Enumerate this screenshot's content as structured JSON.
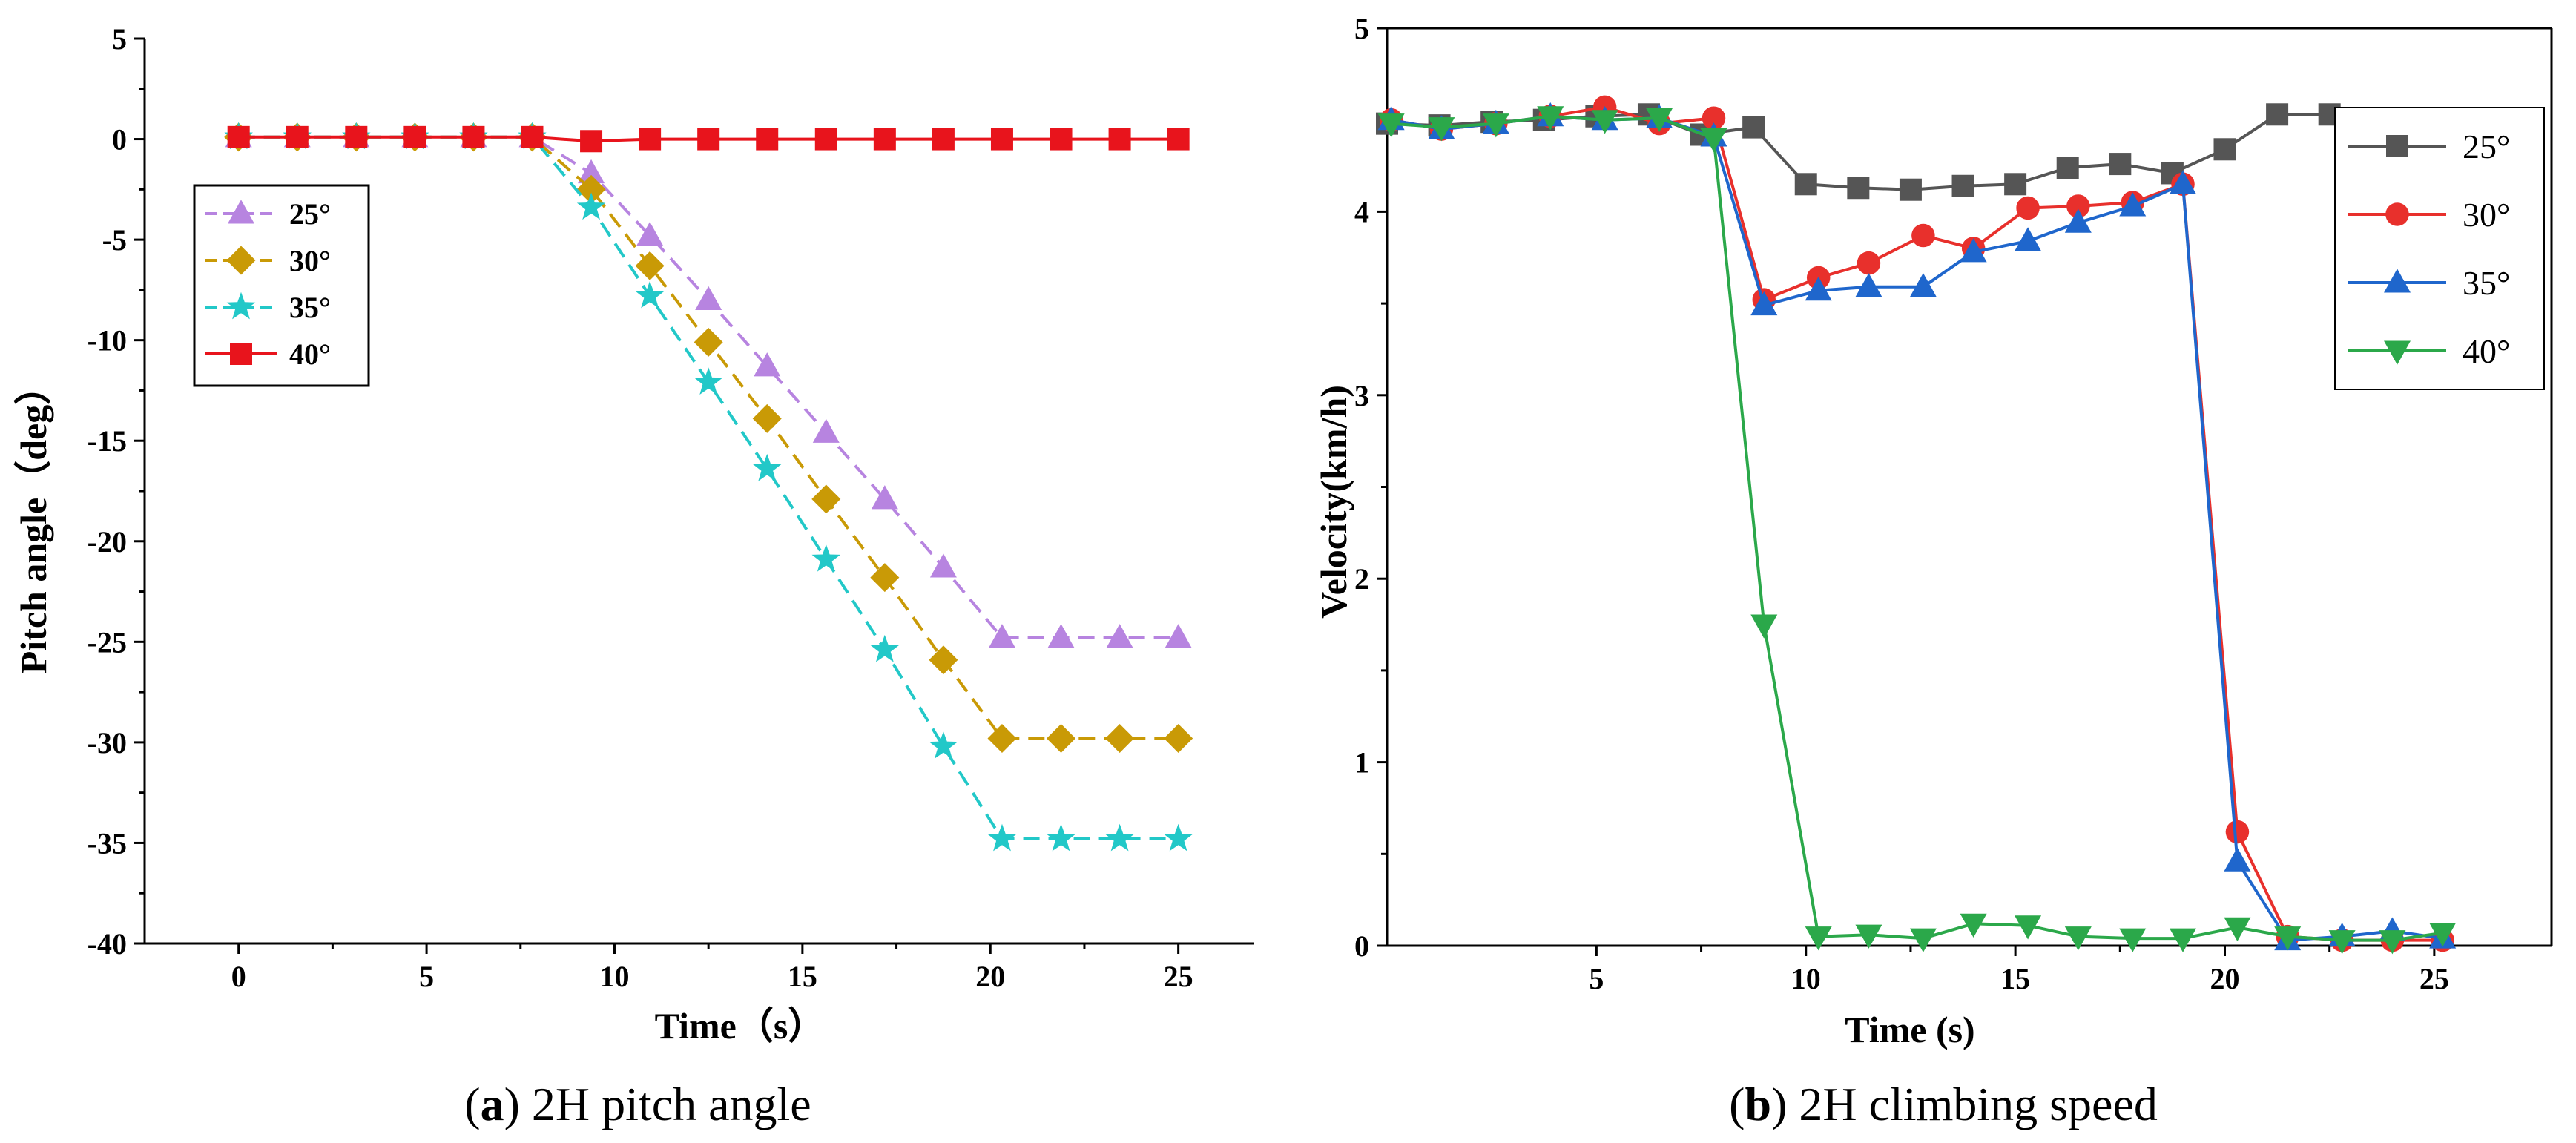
{
  "chart_data": [
    {
      "type": "line",
      "caption_letter": "a",
      "caption_text": ") 2H pitch angle",
      "caption_open": "(",
      "xlabel": "Time（s）",
      "ylabel": "Pitch angle（deg）",
      "xlim": [
        -2.5,
        27
      ],
      "ylim": [
        -40,
        5
      ],
      "xticks": [
        0,
        5,
        10,
        15,
        20,
        25
      ],
      "yticks": [
        5,
        0,
        -5,
        -10,
        -15,
        -20,
        -25,
        -30,
        -35,
        -40
      ],
      "legend_position": "middle-left",
      "series": [
        {
          "name": "25°",
          "color": "#b784e0",
          "marker": "triangle-up",
          "dash": "dashed",
          "x": [
            0,
            1.56,
            3.13,
            4.69,
            6.25,
            7.81,
            9.38,
            10.94,
            12.5,
            14.06,
            15.63,
            17.19,
            18.75,
            20.31,
            21.88,
            23.44,
            25
          ],
          "y": [
            0.1,
            0.1,
            0.1,
            0.1,
            0.1,
            0.1,
            -1.7,
            -4.8,
            -8.0,
            -11.3,
            -14.6,
            -17.9,
            -21.3,
            -24.8,
            -24.8,
            -24.8,
            -24.8
          ]
        },
        {
          "name": "30°",
          "color": "#c99a06",
          "marker": "diamond",
          "dash": "dashed",
          "x": [
            0,
            1.56,
            3.13,
            4.69,
            6.25,
            7.81,
            9.38,
            10.94,
            12.5,
            14.06,
            15.63,
            17.19,
            18.75,
            20.31,
            21.88,
            23.44,
            25
          ],
          "y": [
            0.1,
            0.1,
            0.1,
            0.1,
            0.1,
            0.1,
            -2.5,
            -6.3,
            -10.1,
            -13.9,
            -17.9,
            -21.8,
            -25.9,
            -29.8,
            -29.8,
            -29.8,
            -29.8
          ]
        },
        {
          "name": "35°",
          "color": "#22c8c8",
          "marker": "star",
          "dash": "dashed",
          "x": [
            0,
            1.56,
            3.13,
            4.69,
            6.25,
            7.81,
            9.38,
            10.94,
            12.5,
            14.06,
            15.63,
            17.19,
            18.75,
            20.31,
            21.88,
            23.44,
            25
          ],
          "y": [
            0.1,
            0.1,
            0.1,
            0.1,
            0.1,
            0.1,
            -3.4,
            -7.8,
            -12.1,
            -16.4,
            -20.9,
            -25.4,
            -30.2,
            -34.8,
            -34.8,
            -34.8,
            -34.8
          ]
        },
        {
          "name": "40°",
          "color": "#e8141c",
          "marker": "square",
          "dash": "solid",
          "x": [
            0,
            1.56,
            3.13,
            4.69,
            6.25,
            7.81,
            9.38,
            10.94,
            12.5,
            14.06,
            15.63,
            17.19,
            18.75,
            20.31,
            21.88,
            23.44,
            25
          ],
          "y": [
            0.1,
            0.1,
            0.1,
            0.1,
            0.1,
            0.1,
            -0.1,
            0.0,
            0.0,
            0.0,
            0.0,
            0.0,
            0.0,
            0.0,
            0.0,
            0.0,
            0.0
          ]
        }
      ]
    },
    {
      "type": "line",
      "caption_letter": "b",
      "caption_text": ") 2H climbing speed",
      "caption_open": "(",
      "xlabel": "Time (s)",
      "ylabel": "Velocity(km/h)",
      "xlim": [
        0,
        27.8
      ],
      "ylim": [
        0,
        5
      ],
      "xticks": [
        5,
        10,
        15,
        20,
        25
      ],
      "yticks": [
        5,
        4,
        3,
        2,
        1,
        0
      ],
      "legend_position": "top-right",
      "series": [
        {
          "name": "25°",
          "color": "#555555",
          "marker": "square",
          "x": [
            0,
            1.25,
            2.5,
            3.75,
            5,
            6.25,
            7.5,
            8.75,
            10,
            11.25,
            12.5,
            13.75,
            15,
            16.25,
            17.5,
            18.75,
            20,
            21.25,
            22.5,
            23.75,
            25
          ],
          "y": [
            4.48,
            4.47,
            4.49,
            4.5,
            4.52,
            4.53,
            4.42,
            4.46,
            4.15,
            4.13,
            4.12,
            4.14,
            4.15,
            4.24,
            4.26,
            4.21,
            4.34,
            4.53,
            4.53,
            4.49,
            4.48
          ]
        },
        {
          "name": "30°",
          "color": "#e8302c",
          "marker": "circle",
          "x": [
            0.1,
            1.3,
            2.6,
            3.9,
            5.2,
            6.5,
            7.8,
            9.0,
            10.3,
            11.5,
            12.8,
            14.0,
            15.3,
            16.5,
            17.8,
            19.0,
            20.3,
            21.5,
            22.8,
            24.0,
            25.2
          ],
          "y": [
            4.5,
            4.45,
            4.48,
            4.52,
            4.57,
            4.48,
            4.51,
            3.52,
            3.64,
            3.72,
            3.87,
            3.8,
            4.02,
            4.03,
            4.05,
            4.15,
            0.62,
            0.05,
            0.03,
            0.03,
            0.03
          ]
        },
        {
          "name": "35°",
          "color": "#1f66cc",
          "marker": "triangle-up",
          "x": [
            0.1,
            1.3,
            2.6,
            3.9,
            5.2,
            6.5,
            7.8,
            9.0,
            10.3,
            11.5,
            12.8,
            14.0,
            15.3,
            16.5,
            17.8,
            19.0,
            20.3,
            21.5,
            22.8,
            24.0,
            25.2
          ],
          "y": [
            4.5,
            4.45,
            4.48,
            4.52,
            4.5,
            4.51,
            4.41,
            3.49,
            3.57,
            3.59,
            3.59,
            3.78,
            3.84,
            3.94,
            4.03,
            4.15,
            0.46,
            0.03,
            0.05,
            0.08,
            0.04
          ]
        },
        {
          "name": "40°",
          "color": "#2ba84a",
          "marker": "triangle-down",
          "x": [
            0.1,
            1.3,
            2.6,
            3.9,
            5.2,
            6.5,
            7.8,
            9.0,
            10.3,
            11.5,
            12.8,
            14.0,
            15.3,
            16.5,
            17.8,
            19.0,
            20.3,
            21.5,
            22.8,
            24.0,
            25.2
          ],
          "y": [
            4.48,
            4.46,
            4.48,
            4.52,
            4.5,
            4.51,
            4.4,
            1.75,
            0.05,
            0.06,
            0.04,
            0.12,
            0.11,
            0.05,
            0.04,
            0.04,
            0.1,
            0.05,
            0.03,
            0.03,
            0.07
          ]
        }
      ]
    }
  ]
}
